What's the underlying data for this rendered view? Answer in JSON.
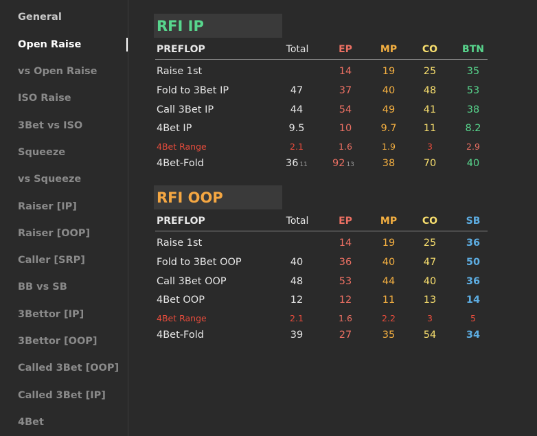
{
  "colors": {
    "ep": "#ec7063",
    "mp": "#f5b041",
    "co": "#f8df6e",
    "btn": "#58d68d",
    "sb": "#5dade2",
    "range": "#e74c3c",
    "rfi_ip_title": "#58d68d",
    "rfi_oop_title": "#f5a742"
  },
  "sidebar": {
    "items": [
      {
        "label": "General"
      },
      {
        "label": "Open Raise"
      },
      {
        "label": "vs Open Raise"
      },
      {
        "label": "ISO Raise"
      },
      {
        "label": "3Bet vs ISO"
      },
      {
        "label": "Squeeze"
      },
      {
        "label": "vs Squeeze"
      },
      {
        "label": "Raiser [IP]"
      },
      {
        "label": "Raiser [OOP]"
      },
      {
        "label": "Caller [SRP]"
      },
      {
        "label": "BB vs SB"
      },
      {
        "label": "3Bettor [IP]"
      },
      {
        "label": "3Bettor [OOP]"
      },
      {
        "label": "Called 3Bet [OOP]"
      },
      {
        "label": "Called 3Bet [IP]"
      },
      {
        "label": "4Bet"
      }
    ]
  },
  "rfi_ip": {
    "title": "RFI IP",
    "headers": {
      "preflop": "PREFLOP",
      "total": "Total",
      "ep": "EP",
      "mp": "MP",
      "co": "CO",
      "last": "BTN"
    },
    "rows": [
      {
        "label": "Raise 1st",
        "total": "",
        "ep": "14",
        "mp": "19",
        "co": "25",
        "last": "35"
      },
      {
        "label": "Fold to 3Bet IP",
        "total": "47",
        "ep": "37",
        "mp": "40",
        "co": "48",
        "last": "53"
      },
      {
        "label": "Call 3Bet IP",
        "total": "44",
        "ep": "54",
        "mp": "49",
        "co": "41",
        "last": "38"
      },
      {
        "label": "4Bet IP",
        "total": "9.5",
        "ep": "10",
        "mp": "9.7",
        "co": "11",
        "last": "8.2"
      },
      {
        "label": "4Bet Range",
        "total": "2.1",
        "ep": "1.6",
        "mp": "1.9",
        "co": "3",
        "last": "2.9"
      },
      {
        "label": "4Bet-Fold",
        "total": "36",
        "total_sub": "11",
        "ep": "92",
        "ep_sub": "13",
        "mp": "38",
        "co": "70",
        "last": "40"
      }
    ]
  },
  "rfi_oop": {
    "title": "RFI OOP",
    "headers": {
      "preflop": "PREFLOP",
      "total": "Total",
      "ep": "EP",
      "mp": "MP",
      "co": "CO",
      "last": "SB"
    },
    "rows": [
      {
        "label": "Raise 1st",
        "total": "",
        "ep": "14",
        "mp": "19",
        "co": "25",
        "last": "36"
      },
      {
        "label": "Fold to 3Bet OOP",
        "total": "40",
        "ep": "36",
        "mp": "40",
        "co": "47",
        "last": "50"
      },
      {
        "label": "Call 3Bet OOP",
        "total": "48",
        "ep": "53",
        "mp": "44",
        "co": "40",
        "last": "36"
      },
      {
        "label": "4Bet OOP",
        "total": "12",
        "ep": "12",
        "mp": "11",
        "co": "13",
        "last": "14"
      },
      {
        "label": "4Bet Range",
        "total": "2.1",
        "ep": "1.6",
        "mp": "2.2",
        "co": "3",
        "last": "5"
      },
      {
        "label": "4Bet-Fold",
        "total": "39",
        "ep": "27",
        "mp": "35",
        "co": "54",
        "last": "34"
      }
    ]
  }
}
